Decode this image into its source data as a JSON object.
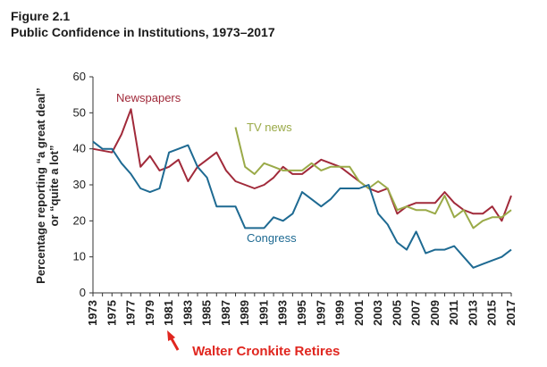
{
  "figure": {
    "label": "Figure 2.1",
    "title": "Public Confidence in Institutions, 1973–2017"
  },
  "colors": {
    "newspapers": "#a12a3a",
    "tv_news": "#9aaa48",
    "congress": "#1e6a92",
    "annotation": "#e0261f",
    "axis": "#333333"
  },
  "chart_data": {
    "type": "line",
    "title": "Public Confidence in Institutions, 1973–2017",
    "xlabel": "",
    "ylabel_lines": [
      "Percentage reporting “a great deal”",
      "or “quite a lot”"
    ],
    "xlim": [
      1973,
      2017
    ],
    "ylim": [
      0,
      60
    ],
    "yticks": [
      0,
      10,
      20,
      30,
      40,
      50,
      60
    ],
    "xticks": [
      1973,
      1975,
      1977,
      1979,
      1981,
      1983,
      1985,
      1987,
      1989,
      1991,
      1993,
      1995,
      1997,
      1999,
      2001,
      2003,
      2005,
      2007,
      2009,
      2011,
      2013,
      2015,
      2017
    ],
    "grid": false,
    "legend": "inline labels",
    "series": [
      {
        "name": "Newspapers",
        "color_key": "newspapers",
        "points": [
          [
            1973,
            40
          ],
          [
            1975,
            39
          ],
          [
            1976,
            44
          ],
          [
            1977,
            51
          ],
          [
            1978,
            35
          ],
          [
            1979,
            38
          ],
          [
            1980,
            34
          ],
          [
            1981,
            35
          ],
          [
            1982,
            37
          ],
          [
            1983,
            31
          ],
          [
            1984,
            35
          ],
          [
            1985,
            37
          ],
          [
            1986,
            39
          ],
          [
            1987,
            34
          ],
          [
            1988,
            31
          ],
          [
            1989,
            30
          ],
          [
            1990,
            29
          ],
          [
            1991,
            30
          ],
          [
            1992,
            32
          ],
          [
            1993,
            35
          ],
          [
            1994,
            33
          ],
          [
            1995,
            33
          ],
          [
            1996,
            35
          ],
          [
            1997,
            37
          ],
          [
            1998,
            36
          ],
          [
            1999,
            35
          ],
          [
            2000,
            33
          ],
          [
            2001,
            31
          ],
          [
            2002,
            29
          ],
          [
            2003,
            28
          ],
          [
            2004,
            29
          ],
          [
            2005,
            22
          ],
          [
            2006,
            24
          ],
          [
            2007,
            25
          ],
          [
            2008,
            25
          ],
          [
            2009,
            25
          ],
          [
            2010,
            28
          ],
          [
            2011,
            25
          ],
          [
            2012,
            23
          ],
          [
            2013,
            22
          ],
          [
            2014,
            22
          ],
          [
            2015,
            24
          ],
          [
            2016,
            20
          ],
          [
            2017,
            27
          ]
        ]
      },
      {
        "name": "TV news",
        "color_key": "tv_news",
        "points": [
          [
            1988,
            46
          ],
          [
            1989,
            35
          ],
          [
            1990,
            33
          ],
          [
            1991,
            36
          ],
          [
            1992,
            35
          ],
          [
            1993,
            34
          ],
          [
            1994,
            34
          ],
          [
            1995,
            34
          ],
          [
            1996,
            36
          ],
          [
            1997,
            34
          ],
          [
            1998,
            35
          ],
          [
            1999,
            35
          ],
          [
            2000,
            35
          ],
          [
            2001,
            31
          ],
          [
            2002,
            29
          ],
          [
            2003,
            31
          ],
          [
            2004,
            29
          ],
          [
            2005,
            23
          ],
          [
            2006,
            24
          ],
          [
            2007,
            23
          ],
          [
            2008,
            23
          ],
          [
            2009,
            22
          ],
          [
            2010,
            27
          ],
          [
            2011,
            21
          ],
          [
            2012,
            23
          ],
          [
            2013,
            18
          ],
          [
            2014,
            20
          ],
          [
            2015,
            21
          ],
          [
            2016,
            21
          ],
          [
            2017,
            23
          ]
        ]
      },
      {
        "name": "Congress",
        "color_key": "congress",
        "points": [
          [
            1973,
            42
          ],
          [
            1974,
            40
          ],
          [
            1975,
            40
          ],
          [
            1976,
            36
          ],
          [
            1977,
            33
          ],
          [
            1978,
            29
          ],
          [
            1979,
            28
          ],
          [
            1980,
            29
          ],
          [
            1981,
            39
          ],
          [
            1982,
            40
          ],
          [
            1983,
            41
          ],
          [
            1984,
            35
          ],
          [
            1985,
            32
          ],
          [
            1986,
            24
          ],
          [
            1987,
            24
          ],
          [
            1988,
            24
          ],
          [
            1989,
            18
          ],
          [
            1990,
            18
          ],
          [
            1991,
            18
          ],
          [
            1992,
            21
          ],
          [
            1993,
            20
          ],
          [
            1994,
            22
          ],
          [
            1995,
            28
          ],
          [
            1996,
            26
          ],
          [
            1997,
            24
          ],
          [
            1998,
            26
          ],
          [
            1999,
            29
          ],
          [
            2000,
            29
          ],
          [
            2001,
            29
          ],
          [
            2002,
            30
          ],
          [
            2003,
            22
          ],
          [
            2004,
            19
          ],
          [
            2005,
            14
          ],
          [
            2006,
            12
          ],
          [
            2007,
            17
          ],
          [
            2008,
            11
          ],
          [
            2009,
            12
          ],
          [
            2010,
            12
          ],
          [
            2011,
            13
          ],
          [
            2012,
            10
          ],
          [
            2013,
            7
          ],
          [
            2014,
            8
          ],
          [
            2015,
            9
          ],
          [
            2016,
            10
          ],
          [
            2017,
            12
          ]
        ]
      }
    ],
    "annotations": [
      {
        "text": "Walter Cronkite Retires",
        "year": 1981,
        "color_key": "annotation"
      }
    ]
  }
}
